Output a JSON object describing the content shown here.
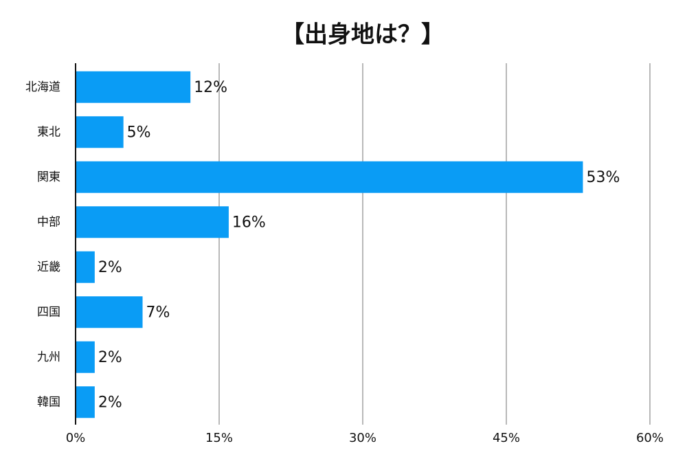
{
  "chart_data": {
    "type": "bar",
    "orientation": "horizontal",
    "title": "【出身地は？】",
    "categories": [
      "北海道",
      "東北",
      "関東",
      "中部",
      "近畿",
      "四国",
      "九州",
      "韓国"
    ],
    "values": [
      12,
      5,
      53,
      16,
      2,
      7,
      2,
      2
    ],
    "value_labels": [
      "12%",
      "5%",
      "53%",
      "16%",
      "2%",
      "7%",
      "2%",
      "2%"
    ],
    "color": "#0a9cf5",
    "xlim": [
      0,
      60
    ],
    "xticks": [
      {
        "value": 0,
        "label": "0%"
      },
      {
        "value": 15,
        "label": "15%"
      },
      {
        "value": 30,
        "label": "30%"
      },
      {
        "value": 45,
        "label": "45%"
      },
      {
        "value": 60,
        "label": "60%"
      }
    ],
    "grid": true
  }
}
